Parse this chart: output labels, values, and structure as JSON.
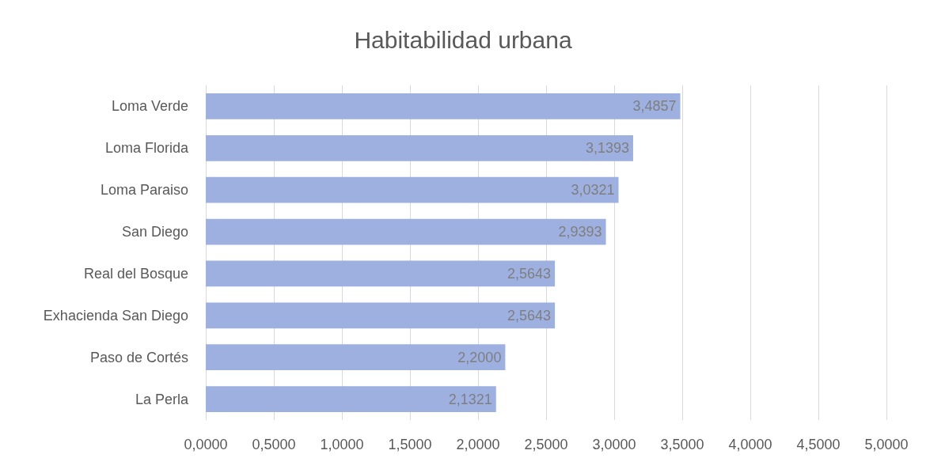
{
  "chart_data": {
    "type": "bar",
    "orientation": "horizontal",
    "title": "Habitabilidad urbana",
    "categories": [
      "Loma Verde",
      "Loma Florida",
      "Loma Paraiso",
      "San Diego",
      "Real del Bosque",
      "Exhacienda San Diego",
      "Paso de Cortés",
      "La Perla"
    ],
    "values": [
      3.4857,
      3.1393,
      3.0321,
      2.9393,
      2.5643,
      2.5643,
      2.2,
      2.1321
    ],
    "value_labels": [
      "3,4857",
      "3,1393",
      "3,0321",
      "2,9393",
      "2,5643",
      "2,5643",
      "2,2000",
      "2,1321"
    ],
    "color": "#9db0e0",
    "xlim": [
      0,
      5
    ],
    "xticks": [
      {
        "value": 0,
        "label": "0,0000"
      },
      {
        "value": 0.5,
        "label": "0,5000"
      },
      {
        "value": 1,
        "label": "1,0000"
      },
      {
        "value": 1.5,
        "label": "1,5000"
      },
      {
        "value": 2,
        "label": "2,0000"
      },
      {
        "value": 2.5,
        "label": "2,5000"
      },
      {
        "value": 3,
        "label": "3,0000"
      },
      {
        "value": 3.5,
        "label": "3,5000"
      },
      {
        "value": 4,
        "label": "4,0000"
      },
      {
        "value": 4.5,
        "label": "4,5000"
      },
      {
        "value": 5,
        "label": "5,0000"
      }
    ],
    "grid": "x"
  }
}
